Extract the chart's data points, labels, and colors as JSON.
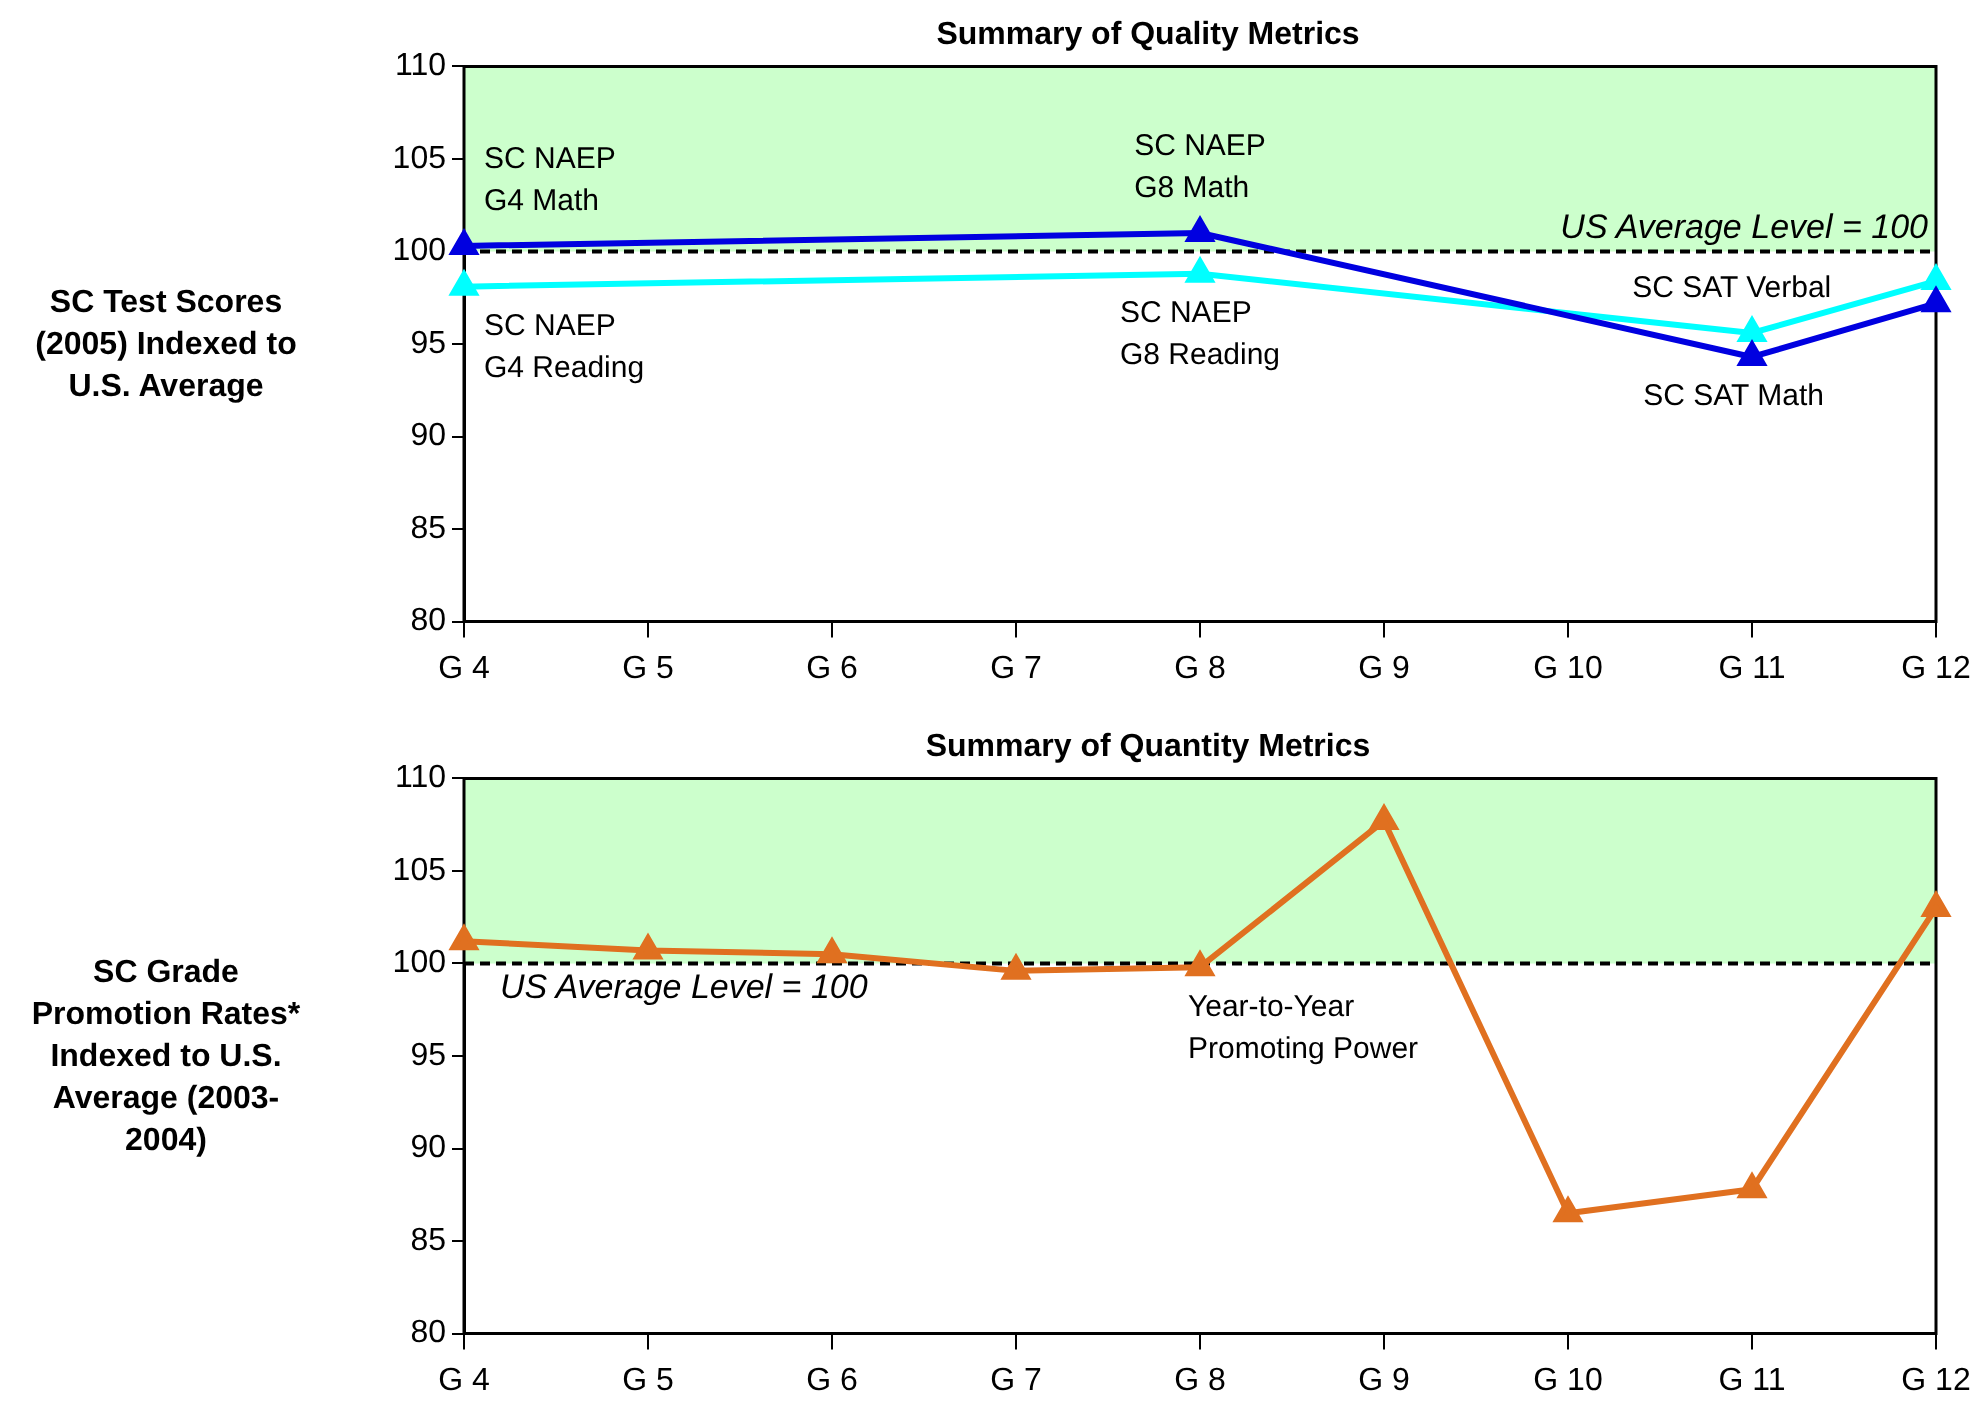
{
  "chart_data": [
    {
      "type": "line",
      "title": "Summary of Quality Metrics",
      "ylabel": "SC Test Scores (2005) Indexed to U.S. Average",
      "categories": [
        "G 4",
        "G 5",
        "G 6",
        "G 7",
        "G 8",
        "G 9",
        "G 10",
        "G 11",
        "G 12"
      ],
      "series": [
        {
          "color": "#0000e0",
          "values": [
            100.3,
            null,
            null,
            null,
            101.0,
            null,
            null,
            94.3,
            97.2
          ]
        },
        {
          "color": "#00ffff",
          "values": [
            98.1,
            null,
            null,
            null,
            98.8,
            null,
            null,
            95.6,
            98.4
          ]
        }
      ],
      "ylim": [
        80,
        110
      ],
      "yticks": [
        80,
        85,
        90,
        95,
        100,
        105,
        110
      ],
      "grid": false,
      "legend": false,
      "marker": "triangle",
      "line_style": "solid",
      "bands": [
        {
          "axis": "y",
          "from": 100,
          "to": 110,
          "color": "#ccffcc"
        }
      ],
      "ref_lines": [
        {
          "axis": "y",
          "value": 100,
          "label": "US Average Level = 100",
          "line_style": "dashed",
          "color": "#000000"
        }
      ],
      "annotations": [
        {
          "text": "SC NAEP\nG4 Math",
          "x": "G 4",
          "y": 100.3
        },
        {
          "text": "SC NAEP\nG4 Reading",
          "x": "G 4",
          "y": 98.1
        },
        {
          "text": "SC NAEP\nG8 Math",
          "x": "G 8",
          "y": 101.0
        },
        {
          "text": "SC NAEP\nG8 Reading",
          "x": "G 8",
          "y": 98.8
        },
        {
          "text": "SC SAT Verbal",
          "x": "G 11",
          "y": 95.6
        },
        {
          "text": "SC SAT Math",
          "x": "G 11",
          "y": 94.3
        }
      ]
    },
    {
      "type": "line",
      "title": "Summary of Quantity Metrics",
      "ylabel": "SC Grade Promotion Rates* Indexed to U.S. Average (2003-2004)",
      "categories": [
        "G 4",
        "G 5",
        "G 6",
        "G 7",
        "G 8",
        "G 9",
        "G 10",
        "G 11",
        "G 12"
      ],
      "series": [
        {
          "color": "#e07020",
          "values": [
            101.2,
            100.7,
            100.5,
            99.6,
            99.8,
            107.7,
            86.5,
            87.8,
            103.0
          ]
        }
      ],
      "ylim": [
        80,
        110
      ],
      "yticks": [
        80,
        85,
        90,
        95,
        100,
        105,
        110
      ],
      "grid": false,
      "legend": false,
      "marker": "triangle",
      "line_style": "solid",
      "bands": [
        {
          "axis": "y",
          "from": 100,
          "to": 110,
          "color": "#ccffcc"
        }
      ],
      "ref_lines": [
        {
          "axis": "y",
          "value": 100,
          "label": "US Average Level = 100",
          "line_style": "dashed",
          "color": "#000000"
        }
      ],
      "annotations": [
        "Year-to-Year\nPromoting Power"
      ]
    }
  ]
}
